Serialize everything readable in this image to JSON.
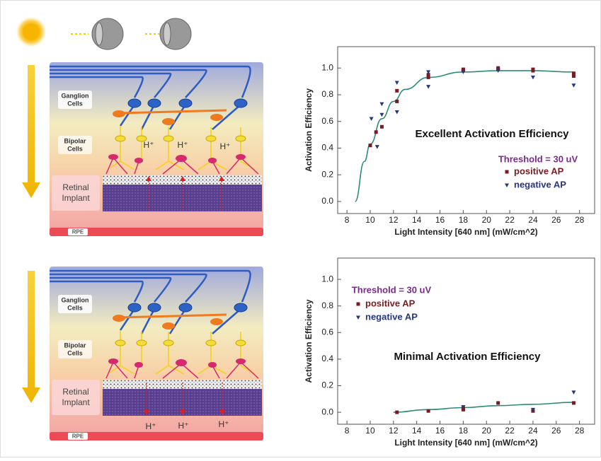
{
  "diagrams": [
    {
      "ganglion_label": [
        "Ganglion",
        "Cells"
      ],
      "bipolar_label": [
        "Bipolar",
        "Cells"
      ],
      "implant_label": [
        "Retinal",
        "Implant"
      ],
      "rpe_label": "RPE",
      "ions": [
        "H⁺",
        "H⁺",
        "H⁺"
      ]
    },
    {
      "ganglion_label": [
        "Ganglion",
        "Cells"
      ],
      "bipolar_label": [
        "Bipolar",
        "Cells"
      ],
      "implant_label": [
        "Retinal",
        "Implant"
      ],
      "rpe_label": "RPE",
      "ions": [
        "H⁺",
        "H⁺",
        "H⁺"
      ]
    }
  ],
  "chart_data": [
    {
      "type": "scatter",
      "x_label": "Light Intensity [640 nm] (mW/cm^2)",
      "y_label": "Activation Efficiency",
      "annotation": "Excellent Activation Efficiency",
      "threshold": "Threshold = 30 uV",
      "xlim": [
        7.2,
        29.3
      ],
      "ylim": [
        -0.09,
        1.16
      ],
      "xticks": [
        8,
        10,
        12,
        14,
        16,
        18,
        20,
        22,
        24,
        26,
        28
      ],
      "yticks": [
        {
          "value": 0,
          "label": "0.0"
        },
        {
          "value": 0.2,
          "label": "0.2"
        },
        {
          "value": 0.4,
          "label": "0.4"
        },
        {
          "value": 0.6,
          "label": "0.6"
        },
        {
          "value": 0.8,
          "label": "0.8"
        },
        {
          "value": 1,
          "label": "1.0"
        }
      ],
      "series": [
        {
          "name": "positive AP",
          "color": "#7a1a22",
          "marker": "square",
          "x": [
            10,
            10.5,
            11,
            12.3,
            12.3,
            15,
            15,
            18,
            18,
            21,
            21,
            24,
            24,
            27.5,
            27.5
          ],
          "values": [
            0.42,
            0.52,
            0.56,
            0.83,
            0.75,
            0.93,
            0.95,
            0.98,
            0.99,
            0.99,
            1.0,
            0.98,
            0.99,
            0.96,
            0.94
          ]
        },
        {
          "name": "negative AP",
          "color": "#27367e",
          "marker": "triangle",
          "x": [
            10.1,
            10.6,
            11,
            11,
            12.3,
            12.3,
            15,
            15,
            18,
            21,
            24,
            27.5
          ],
          "values": [
            0.62,
            0.41,
            0.73,
            0.65,
            0.89,
            0.67,
            0.86,
            0.97,
            0.97,
            0.98,
            0.93,
            0.87
          ]
        }
      ],
      "fit": {
        "color": "#2e8b78",
        "x": [
          8.7,
          9.5,
          10,
          11,
          12,
          13,
          15,
          18,
          21,
          24,
          27.5
        ],
        "values": [
          0,
          0.3,
          0.43,
          0.62,
          0.75,
          0.84,
          0.93,
          0.97,
          0.98,
          0.98,
          0.97
        ]
      }
    },
    {
      "type": "scatter",
      "x_label": "Light Intensity [640 nm] (mW/cm^2)",
      "y_label": "Activation Efficiency",
      "annotation": "Minimal Activation Efficiency",
      "threshold": "Threshold = 30 uV",
      "xlim": [
        7.2,
        29.3
      ],
      "ylim": [
        -0.09,
        1.16
      ],
      "xticks": [
        8,
        10,
        12,
        14,
        16,
        18,
        20,
        22,
        24,
        26,
        28
      ],
      "yticks": [
        {
          "value": 0,
          "label": "0.0"
        },
        {
          "value": 0.2,
          "label": "0.2"
        },
        {
          "value": 0.4,
          "label": "0.4"
        },
        {
          "value": 0.6,
          "label": "0.6"
        },
        {
          "value": 0.8,
          "label": "0.8"
        },
        {
          "value": 1,
          "label": "1.0"
        }
      ],
      "series": [
        {
          "name": "positive AP",
          "color": "#7a1a22",
          "marker": "square",
          "x": [
            12.3,
            15,
            18,
            18,
            21,
            24,
            27.5
          ],
          "values": [
            0.0,
            0.01,
            0.02,
            0.03,
            0.07,
            0.01,
            0.07
          ]
        },
        {
          "name": "negative AP",
          "color": "#27367e",
          "marker": "triangle",
          "x": [
            18,
            24,
            27.5
          ],
          "values": [
            0.04,
            0.02,
            0.15
          ]
        }
      ],
      "fit": {
        "color": "#2e8b78",
        "x": [
          12,
          15,
          18,
          21,
          24,
          27.5
        ],
        "values": [
          0.0,
          0.02,
          0.035,
          0.05,
          0.06,
          0.075
        ]
      }
    }
  ]
}
